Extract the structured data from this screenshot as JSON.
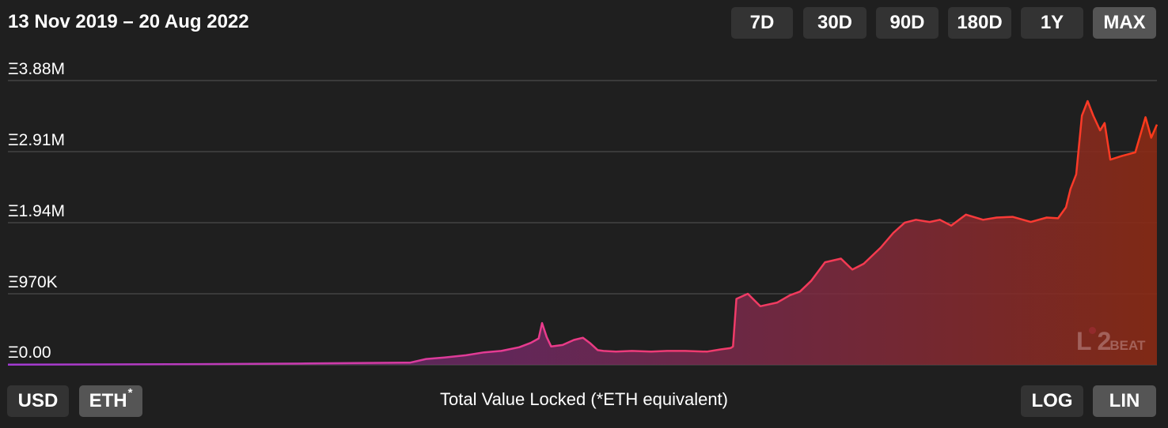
{
  "header": {
    "date_range": "13 Nov 2019 – 20 Aug 2022",
    "range_buttons": [
      {
        "label": "7D",
        "active": false
      },
      {
        "label": "30D",
        "active": false
      },
      {
        "label": "90D",
        "active": false
      },
      {
        "label": "180D",
        "active": false
      },
      {
        "label": "1Y",
        "active": false
      },
      {
        "label": "MAX",
        "active": true
      }
    ]
  },
  "footer": {
    "currency_buttons": [
      {
        "label": "USD",
        "active": false
      },
      {
        "label": "ETH",
        "active": true,
        "superscript": "*"
      }
    ],
    "caption": "Total Value Locked (*ETH equivalent)",
    "scale_buttons": [
      {
        "label": "LOG",
        "active": false
      },
      {
        "label": "LIN",
        "active": true
      }
    ]
  },
  "logo": {
    "text_l": "L",
    "text_2": "2",
    "text_beat": "BEAT"
  },
  "colors": {
    "background": "#1f1f1f",
    "button": "#333333",
    "button_active": "#555555",
    "line_start": "#a23bd4",
    "line_mid": "#e83b8f",
    "line_end": "#ff3a1a",
    "grid": "#555555"
  },
  "chart_data": {
    "type": "area",
    "title": "Total Value Locked (*ETH equivalent)",
    "x_range": [
      "2019-11-13",
      "2022-08-20"
    ],
    "y_tick_labels": [
      "Ξ3.88M",
      "Ξ2.91M",
      "Ξ1.94M",
      "Ξ970K",
      "Ξ0.00"
    ],
    "y_ticks": [
      3880000,
      2910000,
      1940000,
      970000,
      0
    ],
    "ylim": [
      0,
      3880000
    ],
    "grid": true,
    "scale": "linear",
    "unit": "ETH",
    "series": [
      {
        "x": [
          "2019-11-13",
          "2020-02-01",
          "2020-05-01",
          "2020-08-01",
          "2020-11-01",
          "2020-11-15",
          "2020-12-01",
          "2020-12-20",
          "2021-01-05",
          "2021-01-20",
          "2021-02-05",
          "2021-02-15",
          "2021-02-22",
          "2021-02-25",
          "2021-03-01",
          "2021-03-05",
          "2021-03-15",
          "2021-03-25",
          "2021-04-02",
          "2021-04-08",
          "2021-04-15",
          "2021-04-20",
          "2021-05-01",
          "2021-05-15",
          "2021-06-01",
          "2021-06-15",
          "2021-07-01",
          "2021-07-20",
          "2021-08-01",
          "2021-08-10",
          "2021-08-12",
          "2021-08-15",
          "2021-08-25",
          "2021-09-05",
          "2021-09-20",
          "2021-10-01",
          "2021-10-10",
          "2021-10-20",
          "2021-11-01",
          "2021-11-15",
          "2021-11-25",
          "2021-12-05",
          "2021-12-20",
          "2021-12-31",
          "2022-01-10",
          "2022-01-20",
          "2022-02-01",
          "2022-02-10",
          "2022-02-20",
          "2022-03-05",
          "2022-03-20",
          "2022-04-01",
          "2022-04-15",
          "2022-05-01",
          "2022-05-15",
          "2022-05-25",
          "2022-06-01",
          "2022-06-05",
          "2022-06-10",
          "2022-06-15",
          "2022-06-20",
          "2022-06-25",
          "2022-07-01",
          "2022-07-05",
          "2022-07-10",
          "2022-07-20",
          "2022-08-01",
          "2022-08-10",
          "2022-08-15",
          "2022-08-20"
        ],
        "y": [
          2000,
          5000,
          10000,
          18000,
          30000,
          80000,
          100000,
          130000,
          170000,
          190000,
          240000,
          300000,
          360000,
          570000,
          380000,
          250000,
          270000,
          340000,
          370000,
          300000,
          200000,
          190000,
          180000,
          190000,
          180000,
          190000,
          190000,
          180000,
          210000,
          230000,
          250000,
          900000,
          970000,
          800000,
          850000,
          950000,
          1000000,
          1150000,
          1400000,
          1450000,
          1300000,
          1380000,
          1600000,
          1800000,
          1940000,
          1980000,
          1950000,
          1980000,
          1900000,
          2050000,
          1980000,
          2010000,
          2020000,
          1950000,
          2010000,
          2000000,
          2150000,
          2400000,
          2600000,
          3400000,
          3600000,
          3400000,
          3200000,
          3300000,
          2800000,
          2850000,
          2900000,
          3380000,
          3100000,
          3280000
        ]
      }
    ]
  }
}
